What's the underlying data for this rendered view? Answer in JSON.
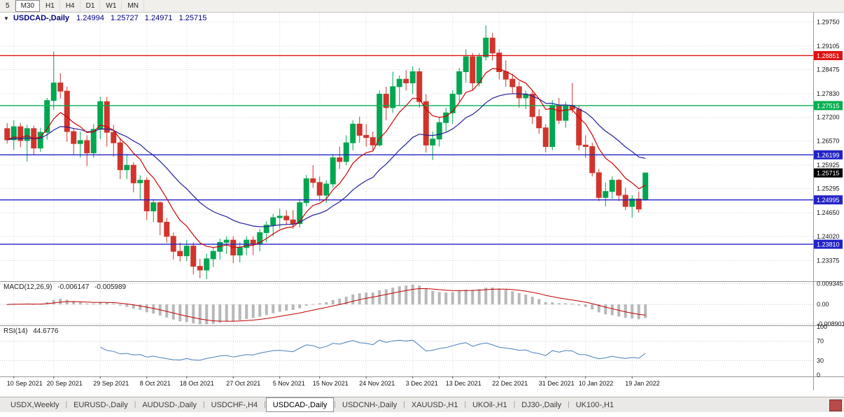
{
  "toolbar": {
    "timeframes": [
      {
        "label": "5",
        "active": false
      },
      {
        "label": "M30",
        "active": true
      },
      {
        "label": "H1",
        "active": false
      },
      {
        "label": "H4",
        "active": false
      },
      {
        "label": "D1",
        "active": false
      },
      {
        "label": "W1",
        "active": false
      },
      {
        "label": "MN",
        "active": false
      }
    ]
  },
  "chart_data": {
    "type": "candlestick",
    "title": {
      "icon": "▼",
      "symbol": "USDCAD-,Daily",
      "open": "1.24994",
      "high": "1.25727",
      "low": "1.24971",
      "close": "1.25715"
    },
    "price_axis": [
      "1.29750",
      "1.29105",
      "1.28475",
      "1.27830",
      "1.27200",
      "1.26570",
      "1.25925",
      "1.25295",
      "1.24650",
      "1.24020",
      "1.23375"
    ],
    "hlines": [
      {
        "price": 1.28851,
        "label": "1.28851",
        "color": "#e01010"
      },
      {
        "price": 1.27515,
        "label": "1.27515",
        "color": "#00b050"
      },
      {
        "price": 1.26199,
        "label": "1.26199",
        "color": "#2222c8"
      },
      {
        "price": 1.24995,
        "label": "1.24995",
        "color": "#2222c8"
      },
      {
        "price": 1.2381,
        "label": "1.23810",
        "color": "#2222c8"
      }
    ],
    "current_price": {
      "value": 1.25715,
      "label": "1.25715",
      "badge_color": "#000000"
    },
    "x_ticks": [
      {
        "index": 1,
        "label": "10 Sep 2021"
      },
      {
        "index": 7,
        "label": "20 Sep 2021"
      },
      {
        "index": 14,
        "label": "29 Sep 2021"
      },
      {
        "index": 21,
        "label": "8 Oct 2021"
      },
      {
        "index": 27,
        "label": "18 Oct 2021"
      },
      {
        "index": 34,
        "label": "27 Oct 2021"
      },
      {
        "index": 41,
        "label": "5 Nov 2021"
      },
      {
        "index": 47,
        "label": "15 Nov 2021"
      },
      {
        "index": 54,
        "label": "24 Nov 2021"
      },
      {
        "index": 61,
        "label": "3 Dec 2021"
      },
      {
        "index": 67,
        "label": "13 Dec 2021"
      },
      {
        "index": 74,
        "label": "22 Dec 2021"
      },
      {
        "index": 81,
        "label": "31 Dec 2021"
      },
      {
        "index": 87,
        "label": "10 Jan 2022"
      },
      {
        "index": 94,
        "label": "19 Jan 2022"
      }
    ],
    "ohlc": [
      [
        1.269,
        1.2705,
        1.265,
        1.266
      ],
      [
        1.266,
        1.2712,
        1.2633,
        1.2695
      ],
      [
        1.2695,
        1.2705,
        1.264,
        1.2658
      ],
      [
        1.2658,
        1.27,
        1.2602,
        1.269
      ],
      [
        1.269,
        1.2698,
        1.262,
        1.2638
      ],
      [
        1.2638,
        1.2692,
        1.2628,
        1.268
      ],
      [
        1.268,
        1.2772,
        1.266,
        1.2765
      ],
      [
        1.2765,
        1.2896,
        1.274,
        1.2812
      ],
      [
        1.2812,
        1.2838,
        1.277,
        1.279
      ],
      [
        1.279,
        1.2802,
        1.2655,
        1.2682
      ],
      [
        1.2682,
        1.2692,
        1.262,
        1.265
      ],
      [
        1.265,
        1.2682,
        1.2612,
        1.2658
      ],
      [
        1.2658,
        1.2672,
        1.259,
        1.2625
      ],
      [
        1.2625,
        1.2702,
        1.2612,
        1.2688
      ],
      [
        1.2688,
        1.2775,
        1.2662,
        1.2762
      ],
      [
        1.2762,
        1.2775,
        1.2642,
        1.268
      ],
      [
        1.268,
        1.27,
        1.2615,
        1.2652
      ],
      [
        1.2652,
        1.2665,
        1.2555,
        1.258
      ],
      [
        1.258,
        1.2622,
        1.2555,
        1.2592
      ],
      [
        1.2592,
        1.26,
        1.252,
        1.2545
      ],
      [
        1.2545,
        1.2565,
        1.25,
        1.2552
      ],
      [
        1.2552,
        1.256,
        1.2446,
        1.247
      ],
      [
        1.247,
        1.2502,
        1.244,
        1.2492
      ],
      [
        1.2492,
        1.2496,
        1.2405,
        1.244
      ],
      [
        1.244,
        1.2452,
        1.2385,
        1.2402
      ],
      [
        1.2402,
        1.2412,
        1.234,
        1.2362
      ],
      [
        1.2362,
        1.2386,
        1.2335,
        1.235
      ],
      [
        1.235,
        1.2392,
        1.2336,
        1.2376
      ],
      [
        1.2376,
        1.2386,
        1.23,
        1.2322
      ],
      [
        1.2322,
        1.2342,
        1.229,
        1.2312
      ],
      [
        1.2312,
        1.2356,
        1.2288,
        1.2342
      ],
      [
        1.2342,
        1.2372,
        1.232,
        1.2362
      ],
      [
        1.2362,
        1.2396,
        1.234,
        1.2386
      ],
      [
        1.2386,
        1.2402,
        1.2355,
        1.2392
      ],
      [
        1.2392,
        1.2402,
        1.233,
        1.2352
      ],
      [
        1.2352,
        1.2386,
        1.2332,
        1.2372
      ],
      [
        1.2372,
        1.2402,
        1.2352,
        1.2392
      ],
      [
        1.2392,
        1.2402,
        1.2352,
        1.2382
      ],
      [
        1.2382,
        1.2422,
        1.2362,
        1.2412
      ],
      [
        1.2412,
        1.2442,
        1.2386,
        1.2432
      ],
      [
        1.2432,
        1.2462,
        1.2402,
        1.2452
      ],
      [
        1.2452,
        1.2476,
        1.2422,
        1.2456
      ],
      [
        1.2456,
        1.2472,
        1.2432,
        1.2446
      ],
      [
        1.2446,
        1.2472,
        1.2422,
        1.2436
      ],
      [
        1.2436,
        1.2502,
        1.2426,
        1.2492
      ],
      [
        1.2492,
        1.2566,
        1.2482,
        1.2556
      ],
      [
        1.2556,
        1.2592,
        1.2532,
        1.2546
      ],
      [
        1.2546,
        1.2562,
        1.2496,
        1.2512
      ],
      [
        1.2512,
        1.2552,
        1.2492,
        1.2542
      ],
      [
        1.2542,
        1.2622,
        1.2532,
        1.2612
      ],
      [
        1.2612,
        1.2642,
        1.2582,
        1.2602
      ],
      [
        1.2602,
        1.2672,
        1.2592,
        1.2652
      ],
      [
        1.2652,
        1.2712,
        1.2632,
        1.2702
      ],
      [
        1.2702,
        1.2722,
        1.2652,
        1.2672
      ],
      [
        1.2672,
        1.2702,
        1.2642,
        1.2666
      ],
      [
        1.2666,
        1.2682,
        1.2632,
        1.2646
      ],
      [
        1.2646,
        1.2792,
        1.2642,
        1.2782
      ],
      [
        1.2782,
        1.2802,
        1.2712,
        1.2746
      ],
      [
        1.2746,
        1.2842,
        1.2732,
        1.2802
      ],
      [
        1.2802,
        1.2832,
        1.2752,
        1.2822
      ],
      [
        1.2822,
        1.2846,
        1.2792,
        1.2812
      ],
      [
        1.2812,
        1.2856,
        1.2782,
        1.2842
      ],
      [
        1.2842,
        1.2852,
        1.2746,
        1.2762
      ],
      [
        1.2762,
        1.2782,
        1.2626,
        1.2646
      ],
      [
        1.2646,
        1.2682,
        1.2606,
        1.2662
      ],
      [
        1.2662,
        1.2722,
        1.2642,
        1.2706
      ],
      [
        1.2706,
        1.2746,
        1.2682,
        1.2732
      ],
      [
        1.2732,
        1.2792,
        1.2702,
        1.2782
      ],
      [
        1.2782,
        1.2852,
        1.2762,
        1.2842
      ],
      [
        1.2842,
        1.2902,
        1.2812,
        1.2882
      ],
      [
        1.2882,
        1.2892,
        1.2792,
        1.2812
      ],
      [
        1.2812,
        1.2892,
        1.2802,
        1.2882
      ],
      [
        1.2882,
        1.2966,
        1.2872,
        1.2932
      ],
      [
        1.2932,
        1.2946,
        1.2872,
        1.2892
      ],
      [
        1.2892,
        1.2902,
        1.2822,
        1.2842
      ],
      [
        1.2842,
        1.2872,
        1.2802,
        1.2822
      ],
      [
        1.2822,
        1.2836,
        1.2782,
        1.2802
      ],
      [
        1.2802,
        1.2816,
        1.2746,
        1.2772
      ],
      [
        1.2772,
        1.2792,
        1.2742,
        1.2782
      ],
      [
        1.2782,
        1.2792,
        1.2702,
        1.2722
      ],
      [
        1.2722,
        1.2742,
        1.2676,
        1.2692
      ],
      [
        1.2692,
        1.2702,
        1.2626,
        1.2642
      ],
      [
        1.2642,
        1.2766,
        1.2632,
        1.2752
      ],
      [
        1.2752,
        1.2772,
        1.2702,
        1.2712
      ],
      [
        1.2712,
        1.2762,
        1.2692,
        1.2752
      ],
      [
        1.2752,
        1.2812,
        1.2732,
        1.2742
      ],
      [
        1.2742,
        1.2752,
        1.2632,
        1.2646
      ],
      [
        1.2646,
        1.2672,
        1.2612,
        1.2642
      ],
      [
        1.2642,
        1.2652,
        1.2562,
        1.2572
      ],
      [
        1.2572,
        1.2582,
        1.2496,
        1.2506
      ],
      [
        1.2506,
        1.2546,
        1.2482,
        1.2522
      ],
      [
        1.2522,
        1.2562,
        1.2502,
        1.2552
      ],
      [
        1.2552,
        1.2556,
        1.2496,
        1.2512
      ],
      [
        1.2512,
        1.2532,
        1.2472,
        1.2482
      ],
      [
        1.2482,
        1.2512,
        1.2452,
        1.2502
      ],
      [
        1.2502,
        1.2522,
        1.2465,
        1.2475
      ],
      [
        1.24994,
        1.25727,
        1.24971,
        1.25715
      ]
    ],
    "indicators": {
      "macd": {
        "name": "MACD(12,26,9)",
        "value_main": "-0.006147",
        "value_signal": "-0.005989",
        "fast": 12,
        "slow": 26,
        "signal_period": 9,
        "axis": [
          "0.009345",
          "0.00",
          "-0.008901"
        ]
      },
      "rsi": {
        "name": "RSI(14)",
        "value": "44.6776",
        "period": 14,
        "axis": [
          "100",
          "70",
          "30",
          "0"
        ],
        "levels": [
          70,
          30
        ]
      }
    },
    "colors": {
      "bull": "#00a651",
      "bear": "#d0342c",
      "ma_fast": "#cc0000",
      "ma_slow": "#20209a",
      "macd_hist": "#b8b8b8",
      "macd_signal": "#c00000",
      "rsi_line": "#4a7ebb",
      "grid": "#d8d8d8",
      "axis_text": "#111111"
    }
  },
  "tab_bar": {
    "corner_color": "#b94a48",
    "tabs": [
      {
        "label": "USDX,Weekly",
        "active": false
      },
      {
        "label": "EURUSD-,Daily",
        "active": false
      },
      {
        "label": "AUDUSD-,Daily",
        "active": false
      },
      {
        "label": "USDCHF-,H4",
        "active": false
      },
      {
        "label": "USDCAD-,Daily",
        "active": true
      },
      {
        "label": "USDCNH-,Daily",
        "active": false
      },
      {
        "label": "XAUUSD-,H1",
        "active": false
      },
      {
        "label": "UKOil-,H1",
        "active": false
      },
      {
        "label": "DJ30-,Daily",
        "active": false
      },
      {
        "label": "UK100-,H1",
        "active": false
      }
    ]
  }
}
